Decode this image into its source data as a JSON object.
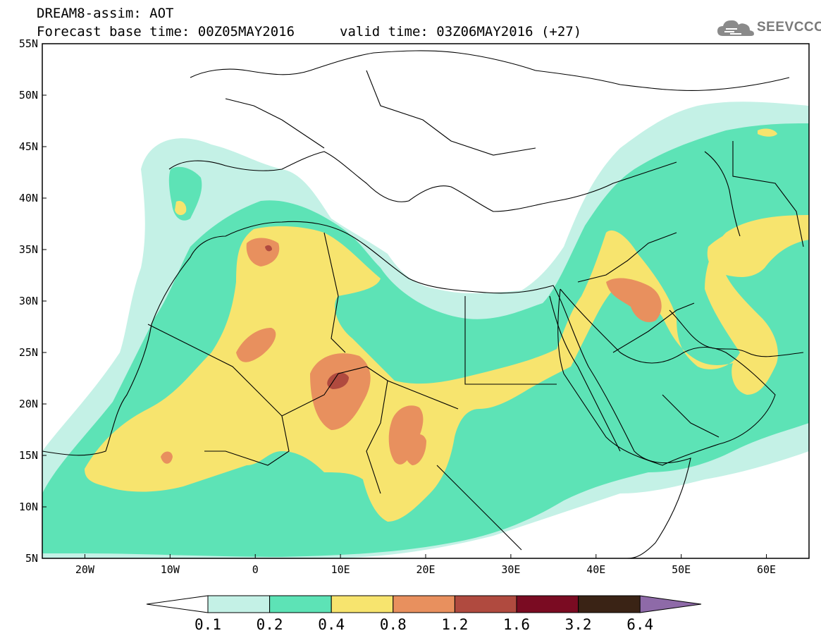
{
  "header": {
    "title_line1": "DREAM8-assim: AOT",
    "forecast_base": "Forecast base time: 00Z05MAY2016",
    "valid_time": "valid time: 03Z06MAY2016 (+27)"
  },
  "logo": {
    "text": "SEEVCCC",
    "icon": "cloud-icon"
  },
  "map": {
    "projection": "lat-lon",
    "lon_range": [
      -25,
      65
    ],
    "lat_range": [
      5,
      55
    ],
    "lat_labels": [
      "55N",
      "50N",
      "45N",
      "40N",
      "35N",
      "30N",
      "25N",
      "20N",
      "15N",
      "10N",
      "5N"
    ],
    "lon_labels": [
      "20W",
      "10W",
      "0",
      "10E",
      "20E",
      "30E",
      "40E",
      "50E",
      "60E"
    ]
  },
  "colorbar": {
    "labels": [
      "0.1",
      "0.2",
      "0.4",
      "0.8",
      "1.2",
      "1.6",
      "3.2",
      "6.4"
    ],
    "colors": {
      "below": "#ffffff",
      "c1": "#c4f1e6",
      "c2": "#5de3b6",
      "c3": "#f7e46e",
      "c4": "#e8905e",
      "c5": "#b04a3f",
      "c6": "#7a0b22",
      "c7": "#3a2315",
      "above": "#8e6aa8"
    }
  }
}
